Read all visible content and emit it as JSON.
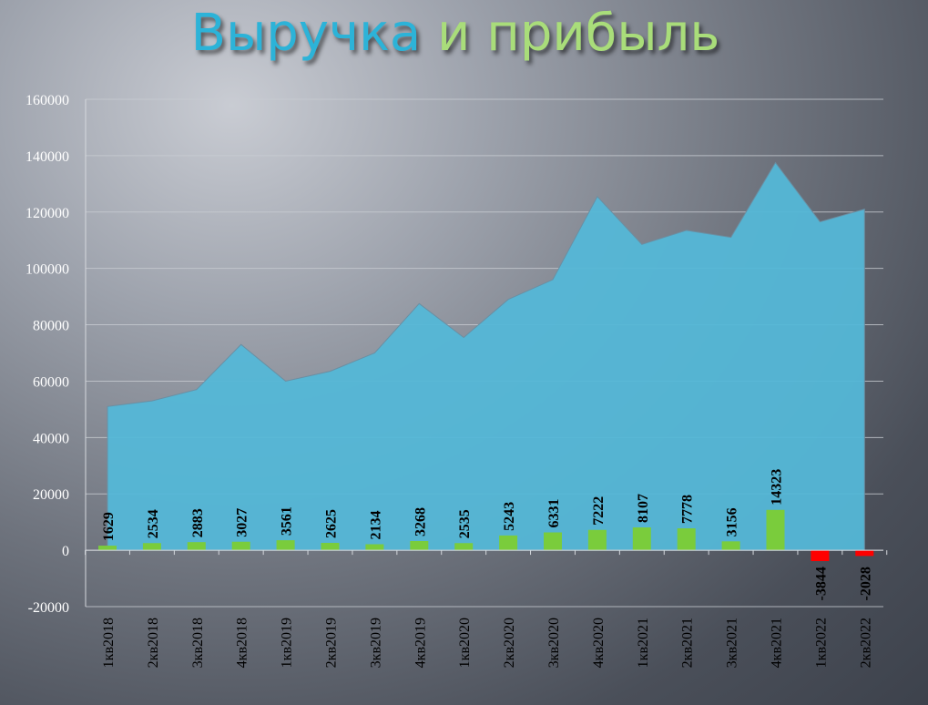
{
  "title": {
    "part1": "Выручка",
    "part2": "и прибыль"
  },
  "chart_data": {
    "type": "area+bar",
    "title": "Выручка и прибыль",
    "categories": [
      "1кв2018",
      "2кв2018",
      "3кв2018",
      "4кв2018",
      "1кв2019",
      "2кв2019",
      "3кв2019",
      "4кв2019",
      "1кв2020",
      "2кв2020",
      "3кв2020",
      "4кв2020",
      "1кв2021",
      "2кв2021",
      "3кв2021",
      "4кв2021",
      "1кв2022",
      "2кв2022"
    ],
    "series": [
      {
        "type": "area",
        "values": [
          51000,
          53000,
          57000,
          73000,
          60000,
          63500,
          70000,
          87500,
          75500,
          89000,
          96000,
          125500,
          108500,
          113500,
          111000,
          137500,
          116500,
          121000
        ]
      },
      {
        "type": "bar",
        "values": [
          1629,
          2534,
          2883,
          3027,
          3561,
          2625,
          2134,
          3268,
          2535,
          5243,
          6331,
          7222,
          8107,
          7778,
          3156,
          14323,
          -3844,
          -2028
        ]
      }
    ],
    "ylim": [
      -20000,
      160000
    ],
    "yticks": [
      160000,
      140000,
      120000,
      100000,
      80000,
      60000,
      40000,
      20000,
      0,
      -20000
    ],
    "grid": true,
    "colors": {
      "area": "#54b7d7",
      "bar_positive": "#7acc3c",
      "bar_negative": "#ff0000"
    }
  }
}
